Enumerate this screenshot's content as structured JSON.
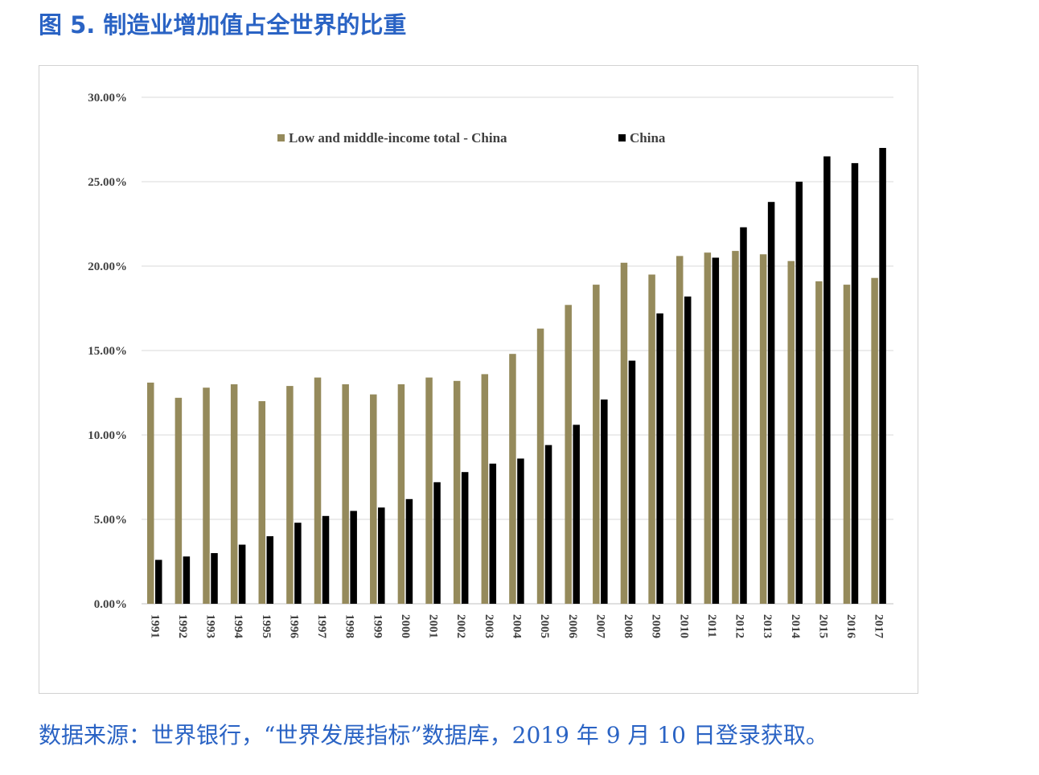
{
  "figure_title": "图 5. 制造业增加值占全世界的比重",
  "source_note": "数据来源：世界银行，“世界发展指标”数据库，2019 年 9 月 10 日登录获取。",
  "colors": {
    "accent": "#2a63c4",
    "series_lmi": "#958a5b",
    "series_china": "#000000",
    "grid": "#d9d9d9",
    "axis": "#bfbfbf"
  },
  "chart_data": {
    "type": "bar",
    "title": "",
    "xlabel": "",
    "ylabel": "",
    "ylim": [
      0,
      0.3
    ],
    "yticks": [
      0,
      0.05,
      0.1,
      0.15,
      0.2,
      0.25,
      0.3
    ],
    "ytick_labels": [
      "0.00%",
      "5.00%",
      "10.00%",
      "15.00%",
      "20.00%",
      "25.00%",
      "30.00%"
    ],
    "grid": true,
    "legend_position": "top-center",
    "categories": [
      "1991",
      "1992",
      "1993",
      "1994",
      "1995",
      "1996",
      "1997",
      "1998",
      "1999",
      "2000",
      "2001",
      "2002",
      "2003",
      "2004",
      "2005",
      "2006",
      "2007",
      "2008",
      "2009",
      "2010",
      "2011",
      "2012",
      "2013",
      "2014",
      "2015",
      "2016",
      "2017"
    ],
    "series": [
      {
        "name": "Low and middle-income total - China",
        "color": "#958a5b",
        "values": [
          0.131,
          0.122,
          0.128,
          0.13,
          0.12,
          0.129,
          0.134,
          0.13,
          0.124,
          0.13,
          0.134,
          0.132,
          0.136,
          0.148,
          0.163,
          0.177,
          0.189,
          0.202,
          0.195,
          0.206,
          0.208,
          0.209,
          0.207,
          0.203,
          0.191,
          0.189,
          0.193
        ]
      },
      {
        "name": "China",
        "color": "#000000",
        "values": [
          0.026,
          0.028,
          0.03,
          0.035,
          0.04,
          0.048,
          0.052,
          0.055,
          0.057,
          0.062,
          0.072,
          0.078,
          0.083,
          0.086,
          0.094,
          0.106,
          0.121,
          0.144,
          0.172,
          0.182,
          0.205,
          0.223,
          0.238,
          0.25,
          0.265,
          0.261,
          0.27
        ]
      }
    ]
  }
}
